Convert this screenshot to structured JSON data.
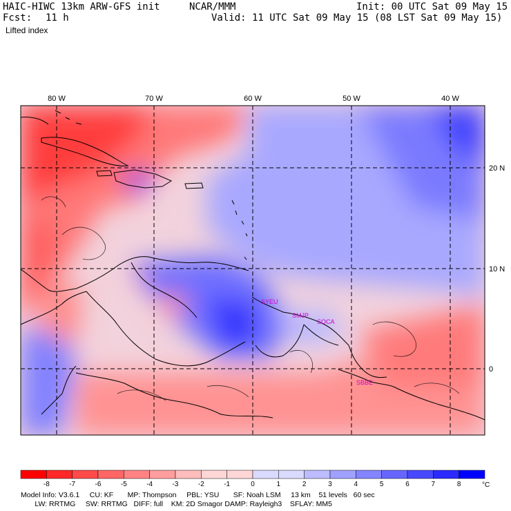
{
  "header": {
    "model_title": "HAIC-HIWC 13km ARW-GFS init",
    "org": "NCAR/MMM",
    "init": "Init: 00 UTC Sat 09 May 15",
    "fcst_label": "Fcst:",
    "fcst_value": "11 h",
    "valid": "Valid: 11 UTC Sat 09 May 15 (08 LST Sat 09 May 15)",
    "field": "Lifted index"
  },
  "map": {
    "lon_labels": [
      "80 W",
      "70 W",
      "60 W",
      "50 W",
      "40 W"
    ],
    "lat_labels": [
      "20 N",
      "10 N",
      "0"
    ],
    "station_labels": [
      "SYEU",
      "SMJP",
      "SOCA",
      "SBBE"
    ],
    "station_color": "#cc00cc"
  },
  "colorbar": {
    "labels": [
      "-8",
      "-7",
      "-6",
      "-5",
      "-4",
      "-3",
      "-2",
      "-1",
      "0",
      "1",
      "2",
      "3",
      "4",
      "5",
      "6",
      "7",
      "8"
    ],
    "unit": "°C",
    "colors": [
      "#ff0000",
      "#ff2828",
      "#ff4a4a",
      "#ff6666",
      "#ff8383",
      "#ff9e9e",
      "#ffbcbc",
      "#ffd6d6",
      "#ffffff",
      "#dadaff",
      "#bcbcff",
      "#a0a0ff",
      "#8484ff",
      "#6666ff",
      "#4848ff",
      "#2a2aff",
      "#0000ff"
    ]
  },
  "footer": {
    "line1": "Model Info: V3.6.1     CU: KF       MP: Thompson     PBL: YSU       SF: Noah LSM     13 km    51 levels   60 sec",
    "line2": "       LW: RRTMG     SW: RRTMG   DIFF: full    KM: 2D Smagor DAMP: Rayleigh3    SFLAY: MM5"
  }
}
